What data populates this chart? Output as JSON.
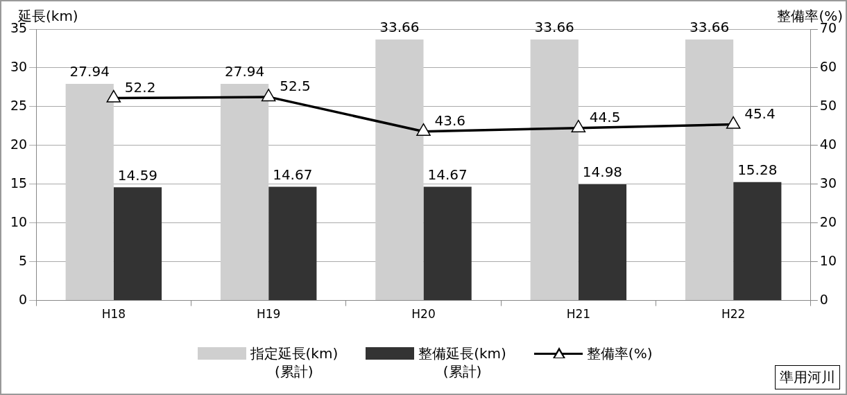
{
  "chart_data": {
    "type": "bar",
    "ylabel": "延長(km)",
    "y2label": "整備率(%)",
    "categories": [
      "H18",
      "H19",
      "H20",
      "H21",
      "H22"
    ],
    "series": [
      {
        "name": "指定延長(km)\n(累計)",
        "color": "#cfcfcf",
        "values": [
          27.94,
          27.94,
          33.66,
          33.66,
          33.66
        ]
      },
      {
        "name": "整備延長(km)\n(累計)",
        "color": "#333333",
        "values": [
          14.59,
          14.67,
          14.67,
          14.98,
          15.28
        ]
      },
      {
        "name": "整備率(%)",
        "type": "line",
        "axis": "y2",
        "color": "#000000",
        "marker": "triangle",
        "line_style": "solid",
        "values": [
          52.2,
          52.5,
          43.6,
          44.5,
          45.4
        ]
      }
    ],
    "ylim": [
      0,
      35
    ],
    "yticks": [
      0,
      5,
      10,
      15,
      20,
      25,
      30,
      35
    ],
    "y2lim": [
      0,
      70
    ],
    "y2ticks": [
      0,
      10,
      20,
      30,
      40,
      50,
      60,
      70
    ],
    "grid": "y",
    "legend": "bottom",
    "data_labels": true,
    "annotations": [
      "準用河川"
    ]
  }
}
